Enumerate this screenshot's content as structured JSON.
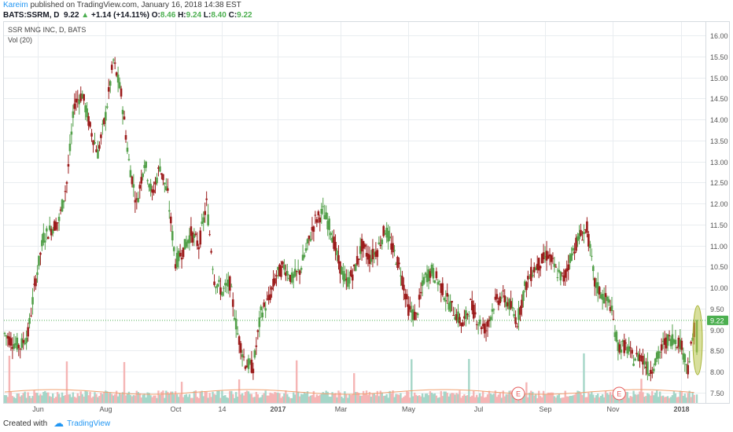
{
  "header": {
    "author": "Kareim",
    "published": "published on TradingView.com, January 16, 2018 14:38 EST",
    "symbol": "BATS:SSRM, D",
    "price": "9.22",
    "change_arrow": "▲",
    "change": "+1.14 (+14.11%)",
    "o_label": "O:",
    "o_value": "8.46",
    "h_label": "H:",
    "h_value": "9.24",
    "l_label": "L:",
    "l_value": "8.40",
    "c_label": "C:",
    "c_value": "9.22"
  },
  "legend": {
    "title": "SSR MNG INC, D, BATS",
    "vol": "Vol (20)"
  },
  "footer": {
    "created_with": "Created with",
    "brand": "TradingView",
    "logo_icon": "tradingview-cloud-icon"
  },
  "colors": {
    "up": "#26a69a",
    "up_candle": "#53a04a",
    "down_candle": "#9c1c1c",
    "vol_up": "#a5d6c8",
    "vol_down": "#f5b5b5",
    "grid": "#e9edf0",
    "price_tag": "#4caf50",
    "highlight": "#b8c54a",
    "earnings": "#e55b5b"
  },
  "chart_data": {
    "type": "candlestick",
    "title": "SSR MNG INC, D, BATS",
    "xlabel": "",
    "ylabel": "",
    "ylim": [
      7.25,
      16.25
    ],
    "y_ticks": [
      "16.00",
      "15.50",
      "15.00",
      "14.50",
      "14.00",
      "13.50",
      "13.00",
      "12.50",
      "12.00",
      "11.50",
      "11.00",
      "10.50",
      "10.00",
      "9.50",
      "9.00",
      "8.50",
      "8.00",
      "7.50"
    ],
    "x_ticks": [
      "Jun",
      "Aug",
      "Oct",
      "14",
      "2017",
      "Mar",
      "May",
      "Jul",
      "Sep",
      "Nov",
      "2018"
    ],
    "last_price": 9.22,
    "price_line": 9.22,
    "grid": true,
    "earnings_markers": [
      {
        "label": "E",
        "date": "2017-08-08"
      },
      {
        "label": "E",
        "date": "2017-11-07"
      }
    ],
    "weekly_close": [
      [
        "2016-05-02",
        8.9
      ],
      [
        "2016-05-09",
        8.7
      ],
      [
        "2016-05-16",
        8.6
      ],
      [
        "2016-05-23",
        8.9
      ],
      [
        "2016-05-30",
        10.2
      ],
      [
        "2016-06-06",
        11.2
      ],
      [
        "2016-06-13",
        11.4
      ],
      [
        "2016-06-20",
        11.6
      ],
      [
        "2016-06-27",
        12.5
      ],
      [
        "2016-07-04",
        14.4
      ],
      [
        "2016-07-11",
        14.6
      ],
      [
        "2016-07-18",
        13.8
      ],
      [
        "2016-07-25",
        13.2
      ],
      [
        "2016-08-01",
        14.1
      ],
      [
        "2016-08-08",
        15.4
      ],
      [
        "2016-08-15",
        14.6
      ],
      [
        "2016-08-22",
        13.0
      ],
      [
        "2016-08-29",
        12.0
      ],
      [
        "2016-09-05",
        13.0
      ],
      [
        "2016-09-12",
        12.2
      ],
      [
        "2016-09-19",
        12.9
      ],
      [
        "2016-09-26",
        12.2
      ],
      [
        "2016-10-03",
        10.6
      ],
      [
        "2016-10-10",
        10.9
      ],
      [
        "2016-10-17",
        11.3
      ],
      [
        "2016-10-24",
        11.0
      ],
      [
        "2016-10-31",
        12.0
      ],
      [
        "2016-11-07",
        10.2
      ],
      [
        "2016-11-14",
        9.9
      ],
      [
        "2016-11-21",
        10.1
      ],
      [
        "2016-11-28",
        8.9
      ],
      [
        "2016-12-05",
        8.2
      ],
      [
        "2016-12-12",
        8.1
      ],
      [
        "2016-12-19",
        9.4
      ],
      [
        "2016-12-26",
        9.7
      ],
      [
        "2017-01-02",
        10.3
      ],
      [
        "2017-01-09",
        10.5
      ],
      [
        "2017-01-16",
        10.2
      ],
      [
        "2017-01-23",
        10.4
      ],
      [
        "2017-01-30",
        11.0
      ],
      [
        "2017-02-06",
        11.6
      ],
      [
        "2017-02-13",
        11.8
      ],
      [
        "2017-02-20",
        11.4
      ],
      [
        "2017-02-27",
        10.6
      ],
      [
        "2017-03-06",
        10.1
      ],
      [
        "2017-03-13",
        10.4
      ],
      [
        "2017-03-20",
        11.0
      ],
      [
        "2017-03-27",
        10.7
      ],
      [
        "2017-04-03",
        10.9
      ],
      [
        "2017-04-10",
        11.4
      ],
      [
        "2017-04-17",
        10.9
      ],
      [
        "2017-04-24",
        10.4
      ],
      [
        "2017-05-01",
        9.5
      ],
      [
        "2017-05-08",
        9.3
      ],
      [
        "2017-05-15",
        10.2
      ],
      [
        "2017-05-22",
        10.4
      ],
      [
        "2017-05-29",
        10.1
      ],
      [
        "2017-06-05",
        9.7
      ],
      [
        "2017-06-12",
        9.4
      ],
      [
        "2017-06-19",
        9.1
      ],
      [
        "2017-06-26",
        9.6
      ],
      [
        "2017-07-03",
        9.2
      ],
      [
        "2017-07-10",
        9.0
      ],
      [
        "2017-07-17",
        9.6
      ],
      [
        "2017-07-24",
        9.8
      ],
      [
        "2017-07-31",
        9.6
      ],
      [
        "2017-08-07",
        9.2
      ],
      [
        "2017-08-14",
        10.0
      ],
      [
        "2017-08-21",
        10.4
      ],
      [
        "2017-08-28",
        10.6
      ],
      [
        "2017-09-04",
        10.8
      ],
      [
        "2017-09-11",
        10.4
      ],
      [
        "2017-09-18",
        10.2
      ],
      [
        "2017-09-25",
        10.8
      ],
      [
        "2017-10-02",
        11.2
      ],
      [
        "2017-10-09",
        11.4
      ],
      [
        "2017-10-16",
        10.1
      ],
      [
        "2017-10-23",
        9.8
      ],
      [
        "2017-10-30",
        9.6
      ],
      [
        "2017-11-06",
        8.6
      ],
      [
        "2017-11-13",
        8.6
      ],
      [
        "2017-11-20",
        8.3
      ],
      [
        "2017-11-27",
        8.4
      ],
      [
        "2017-12-04",
        8.0
      ],
      [
        "2017-12-11",
        8.3
      ],
      [
        "2017-12-18",
        8.7
      ],
      [
        "2017-12-25",
        8.8
      ],
      [
        "2018-01-01",
        8.7
      ],
      [
        "2018-01-08",
        8.1
      ],
      [
        "2018-01-15",
        9.22
      ]
    ]
  }
}
